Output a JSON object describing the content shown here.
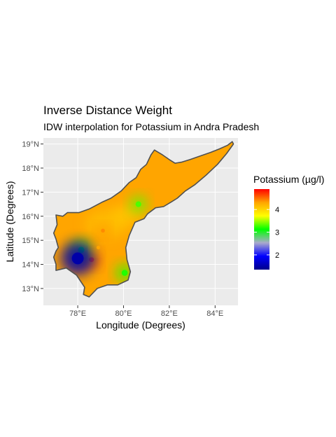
{
  "title": "Inverse Distance Weight",
  "subtitle": "IDW interpolation for Potassium in Andra Pradesh",
  "x_axis": {
    "label": "Longitude (Degrees)",
    "ticks": [
      {
        "value": 78,
        "label": "78°E"
      },
      {
        "value": 80,
        "label": "80°E"
      },
      {
        "value": 82,
        "label": "82°E"
      },
      {
        "value": 84,
        "label": "84°E"
      }
    ],
    "range": [
      76.5,
      85.0
    ]
  },
  "y_axis": {
    "label": "Latitude (Degrees)",
    "ticks": [
      {
        "value": 13,
        "label": "13°N"
      },
      {
        "value": 14,
        "label": "14°N"
      },
      {
        "value": 15,
        "label": "15°N"
      },
      {
        "value": 16,
        "label": "16°N"
      },
      {
        "value": 17,
        "label": "17°N"
      },
      {
        "value": 18,
        "label": "18°N"
      },
      {
        "value": 19,
        "label": "19°N"
      }
    ],
    "range": [
      12.3,
      19.25
    ]
  },
  "legend": {
    "title": "Potassium (µg/l)",
    "placement": "right",
    "ticks": [
      {
        "value": 2,
        "label": "2"
      },
      {
        "value": 3,
        "label": "3"
      },
      {
        "value": 4,
        "label": "4"
      }
    ],
    "range": [
      1.35,
      4.9
    ],
    "colors": [
      "#00008b",
      "#0000ff",
      "#aaaacc",
      "#00ff00",
      "#ffff00",
      "#ffa500",
      "#ff0000"
    ]
  },
  "colors": {
    "panel_background": "#ebebeb",
    "grid": "#ffffff",
    "region_fill": "#ffa500",
    "border": "#505050"
  },
  "map_data": {
    "region": "Andra Pradesh",
    "grid": true,
    "outline": [
      [
        84.75,
        19.1
      ],
      [
        84.55,
        18.95
      ],
      [
        84.2,
        18.8
      ],
      [
        83.8,
        18.65
      ],
      [
        83.35,
        18.5
      ],
      [
        82.9,
        18.35
      ],
      [
        82.55,
        18.25
      ],
      [
        82.25,
        18.2
      ],
      [
        82.0,
        18.35
      ],
      [
        81.7,
        18.55
      ],
      [
        81.35,
        18.75
      ],
      [
        81.2,
        18.55
      ],
      [
        81.0,
        18.15
      ],
      [
        80.75,
        17.95
      ],
      [
        80.55,
        17.6
      ],
      [
        80.25,
        17.4
      ],
      [
        79.9,
        17.05
      ],
      [
        79.45,
        16.75
      ],
      [
        79.1,
        16.6
      ],
      [
        78.5,
        16.3
      ],
      [
        78.05,
        16.15
      ],
      [
        77.55,
        16.15
      ],
      [
        77.35,
        16.0
      ],
      [
        77.05,
        16.05
      ],
      [
        77.1,
        15.65
      ],
      [
        76.95,
        15.3
      ],
      [
        77.05,
        15.05
      ],
      [
        77.15,
        14.7
      ],
      [
        77.05,
        14.55
      ],
      [
        76.95,
        14.3
      ],
      [
        77.05,
        14.0
      ],
      [
        77.05,
        13.75
      ],
      [
        77.5,
        13.85
      ],
      [
        77.95,
        13.55
      ],
      [
        78.3,
        13.05
      ],
      [
        78.25,
        12.75
      ],
      [
        78.5,
        12.65
      ],
      [
        78.85,
        13.0
      ],
      [
        79.3,
        13.15
      ],
      [
        79.75,
        13.15
      ],
      [
        80.2,
        13.35
      ],
      [
        80.3,
        13.7
      ],
      [
        80.15,
        14.2
      ],
      [
        80.1,
        14.7
      ],
      [
        80.25,
        15.2
      ],
      [
        80.5,
        15.75
      ],
      [
        80.9,
        15.9
      ],
      [
        81.05,
        16.1
      ],
      [
        81.4,
        16.35
      ],
      [
        81.75,
        16.4
      ],
      [
        82.1,
        16.6
      ],
      [
        82.35,
        16.75
      ],
      [
        82.7,
        17.05
      ],
      [
        83.1,
        17.3
      ],
      [
        83.6,
        17.7
      ],
      [
        84.1,
        18.15
      ],
      [
        84.5,
        18.6
      ],
      [
        84.8,
        19.0
      ],
      [
        84.75,
        19.1
      ]
    ],
    "points": [
      {
        "lon": 78.6,
        "lat": 14.2,
        "value": 4.7
      },
      {
        "lon": 78.15,
        "lat": 14.6,
        "value": 3.1
      },
      {
        "lon": 78.0,
        "lat": 14.25,
        "value": 1.5
      },
      {
        "lon": 78.9,
        "lat": 14.7,
        "value": 4.3
      },
      {
        "lon": 80.65,
        "lat": 16.5,
        "value": 3.3
      },
      {
        "lon": 80.05,
        "lat": 13.65,
        "value": 3.2
      },
      {
        "lon": 79.1,
        "lat": 15.4,
        "value": 4.4
      }
    ]
  }
}
